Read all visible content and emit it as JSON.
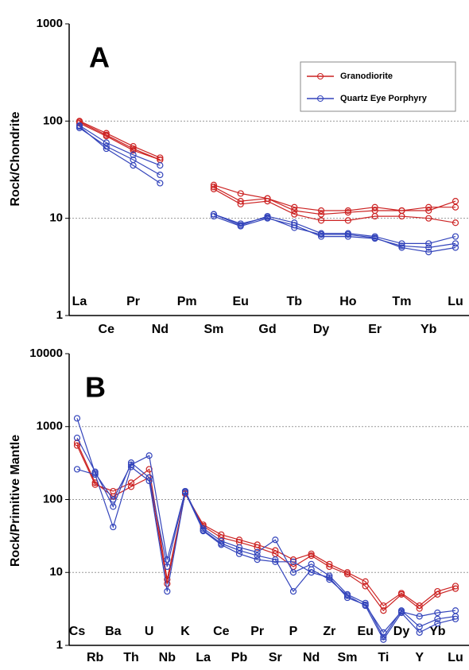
{
  "chart_data": [
    {
      "type": "line",
      "title": "A",
      "y_label": "Rock/Chondrite",
      "log_scale": true,
      "grid": true,
      "legend": "upper right",
      "ylim": [
        1,
        1000
      ],
      "yticks": [
        1,
        10,
        100,
        1000
      ],
      "categories": [
        "La",
        "Ce",
        "Pr",
        "Nd",
        "Pm",
        "Sm",
        "Eu",
        "Gd",
        "Tb",
        "Dy",
        "Ho",
        "Er",
        "Tm",
        "Yb",
        "Lu"
      ],
      "series": [
        {
          "name": "Granodiorite",
          "color": "#cc2222",
          "samples": [
            [
              100,
              75,
              55,
              42,
              null,
              22,
              18,
              16,
              13,
              12,
              12,
              13,
              12,
              12,
              15
            ],
            [
              95,
              70,
              50,
              40,
              null,
              21,
              15,
              16,
              12,
              11,
              11.5,
              12,
              12,
              13,
              13
            ],
            [
              98,
              72,
              52,
              40,
              null,
              20,
              14,
              15,
              11,
              9.5,
              9.5,
              10.5,
              10.5,
              10,
              9
            ]
          ]
        },
        {
          "name": "Quartz Eye Porphyry",
          "color": "#3344bb",
          "samples": [
            [
              90,
              60,
              45,
              35,
              null,
              11,
              8.5,
              10.5,
              9,
              7,
              7,
              6.5,
              5.5,
              5.5,
              6.5
            ],
            [
              85,
              55,
              40,
              28,
              null,
              10.5,
              8.3,
              10,
              8.5,
              6.5,
              6.5,
              6.2,
              5.2,
              5,
              5.5
            ],
            [
              88,
              52,
              35,
              23,
              null,
              11,
              8.8,
              10.2,
              8,
              6.8,
              6.8,
              6.3,
              5,
              4.5,
              5
            ]
          ]
        }
      ]
    },
    {
      "type": "line",
      "title": "B",
      "y_label": "Rock/Primitive Mantle",
      "log_scale": true,
      "grid": true,
      "ylim": [
        1,
        10000
      ],
      "yticks": [
        1,
        10,
        100,
        1000,
        10000
      ],
      "categories": [
        "Cs",
        "Rb",
        "Ba",
        "Th",
        "U",
        "Nb",
        "K",
        "La",
        "Ce",
        "Pb",
        "Pr",
        "Sr",
        "P",
        "Nd",
        "Zr",
        "Sm",
        "Eu",
        "Ti",
        "Dy",
        "Y",
        "Yb",
        "Lu"
      ],
      "series": [
        {
          "name": "Granodiorite",
          "color": "#cc2222",
          "samples": [
            [
              550,
              160,
              130,
              170,
              260,
              8,
              120,
              45,
              33,
              28,
              24,
              20,
              15,
              18,
              13,
              10,
              7.5,
              3.5,
              5.2,
              3.5,
              5.5,
              6.5
            ],
            [
              600,
              170,
              110,
              150,
              200,
              7,
              125,
              43,
              30,
              26,
              22,
              18,
              12,
              17,
              12,
              9.5,
              6.5,
              3,
              5,
              3.2,
              5,
              6
            ]
          ]
        },
        {
          "name": "Quartz Eye Porphyry",
          "color": "#3344bb",
          "samples": [
            [
              1300,
              230,
              100,
              300,
              400,
              15,
              130,
              40,
              27,
              22,
              19,
              28,
              10,
              13,
              9,
              5,
              3.8,
              1.3,
              3,
              1.8,
              2.3,
              2.5
            ],
            [
              700,
              240,
              80,
              320,
              200,
              12,
              130,
              38,
              25,
              20,
              17,
              15,
              5.5,
              11,
              8,
              4.8,
              3.5,
              1.2,
              2.8,
              1.5,
              2,
              2.3
            ],
            [
              260,
              220,
              42,
              280,
              180,
              5.5,
              125,
              37,
              24,
              18,
              15,
              14,
              14,
              10,
              8.5,
              4.5,
              3.6,
              1.5,
              2.9,
              2.5,
              2.8,
              3
            ]
          ]
        }
      ]
    }
  ]
}
